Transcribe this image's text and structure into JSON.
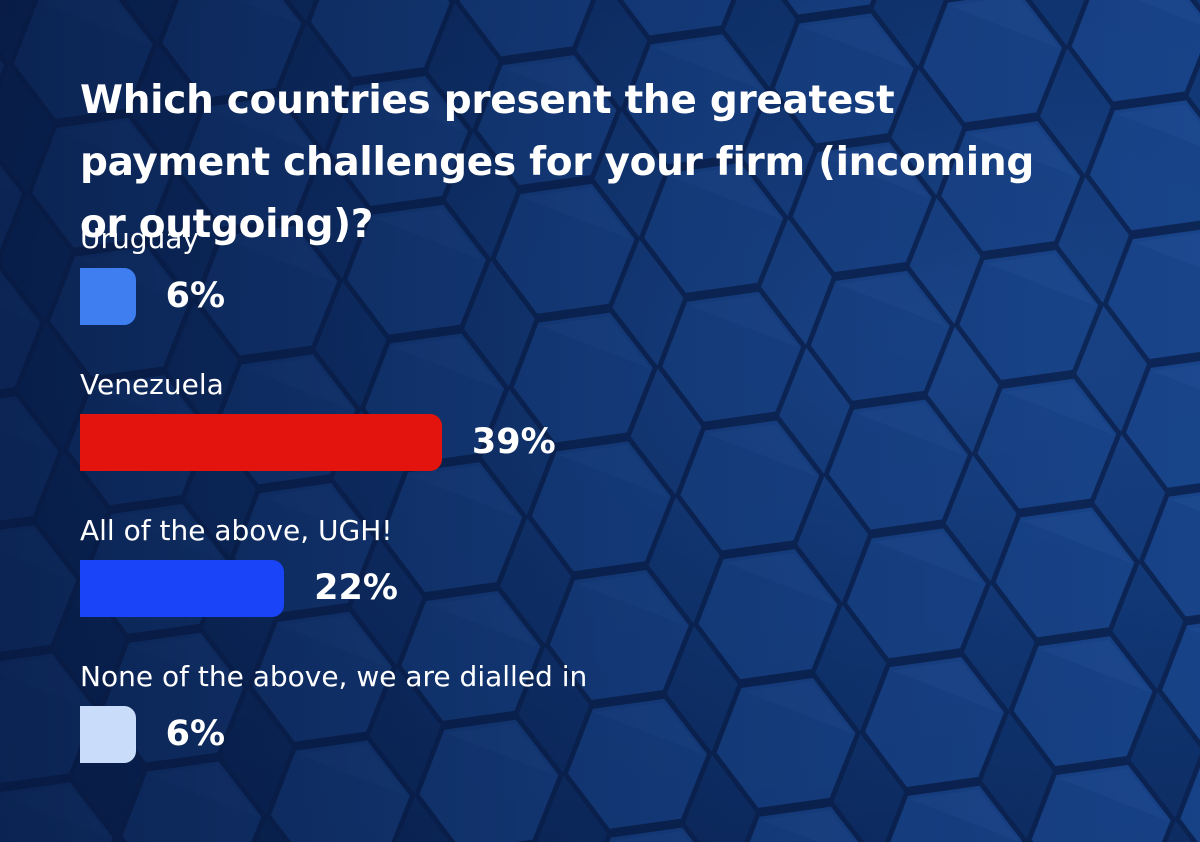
{
  "chart_data": {
    "type": "bar",
    "title": "Which countries present the greatest payment challenges for your firm (incoming or outgoing)?",
    "categories": [
      "Uruguay",
      "Venezuela",
      "All of the above, UGH!",
      "None of the above, we are dialled in"
    ],
    "values": [
      6,
      39,
      22,
      6
    ],
    "value_labels": [
      "6%",
      "39%",
      "22%",
      "6%"
    ],
    "colors": [
      "#3e7ef0",
      "#e3140e",
      "#1a44f7",
      "#c9ddfa"
    ]
  }
}
